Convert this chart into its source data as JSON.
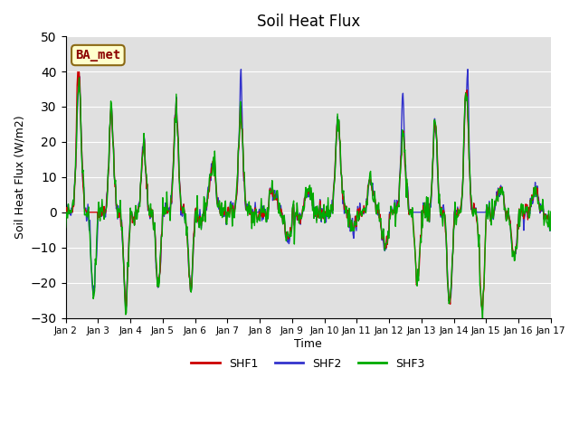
{
  "title": "Soil Heat Flux",
  "ylabel": "Soil Heat Flux (W/m2)",
  "xlabel": "Time",
  "annotation": "BA_met",
  "ylim": [
    -30,
    50
  ],
  "colors": {
    "SHF1": "#cc0000",
    "SHF2": "#3333cc",
    "SHF3": "#00aa00"
  },
  "bg_color": "#e0e0e0",
  "linewidth": 1.0,
  "x_tick_labels": [
    "Jan 2",
    "Jan 3",
    "Jan 4",
    "Jan 5",
    "Jan 6",
    "Jan 7",
    "Jan 8",
    "Jan 9",
    "Jan 10",
    "Jan 11",
    "Jan 12",
    "Jan 13",
    "Jan 14",
    "Jan 15",
    "Jan 16",
    "Jan 17"
  ],
  "legend_entries": [
    "SHF1",
    "SHF2",
    "SHF3"
  ]
}
